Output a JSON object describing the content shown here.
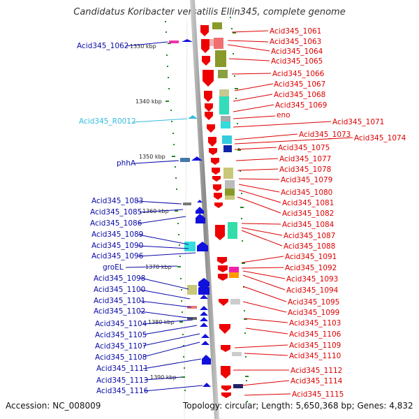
{
  "title": "Candidatus Koribacter versatilis Ellin345, complete genome",
  "footer": {
    "accession": "Accession: NC_008009",
    "topology": "Topology: circular; Length: 5,650,368 bp; Genes: 4,832"
  },
  "scale_labels": [
    "1330 kbp",
    "1340 kbp",
    "1350 kbp",
    "1360 kbp",
    "1370 kbp",
    "1380 kbp",
    "1390 kbp"
  ],
  "right_labels": [
    "Acid345_1061",
    "Acid345_1063",
    "Acid345_1064",
    "Acid345_1065",
    "Acid345_1066",
    "Acid345_1067",
    "Acid345_1068",
    "Acid345_1069",
    "eno",
    "Acid345_1071",
    "Acid345_1073",
    "Acid345_1074",
    "Acid345_1075",
    "Acid345_1077",
    "Acid345_1078",
    "Acid345_1079",
    "Acid345_1080",
    "Acid345_1081",
    "Acid345_1082",
    "Acid345_1084",
    "Acid345_1087",
    "Acid345_1088",
    "Acid345_1091",
    "Acid345_1092",
    "Acid345_1093",
    "Acid345_1094",
    "Acid345_1095",
    "Acid345_1099",
    "Acid345_1103",
    "Acid345_1106",
    "Acid345_1109",
    "Acid345_1110",
    "Acid345_1112",
    "Acid345_1114",
    "Acid345_1115"
  ],
  "left_labels": [
    "Acid345_1062",
    "Acid345_R0012",
    "phhA",
    "Acid345_1083",
    "Acid345_1085",
    "Acid345_1086",
    "Acid345_1089",
    "Acid345_1090",
    "Acid345_1096",
    "groEL",
    "Acid345_1098",
    "Acid345_1100",
    "Acid345_1101",
    "Acid345_1102",
    "Acid345_1104",
    "Acid345_1105",
    "Acid345_1107",
    "Acid345_1108",
    "Acid345_1111",
    "Acid345_1113",
    "Acid345_1116"
  ],
  "colors": {
    "forward_gene": "#ee0000",
    "reverse_gene": "#1111dd",
    "rna_gene": "#33bbdd",
    "backbone": "#999999",
    "tick": "#228822"
  }
}
